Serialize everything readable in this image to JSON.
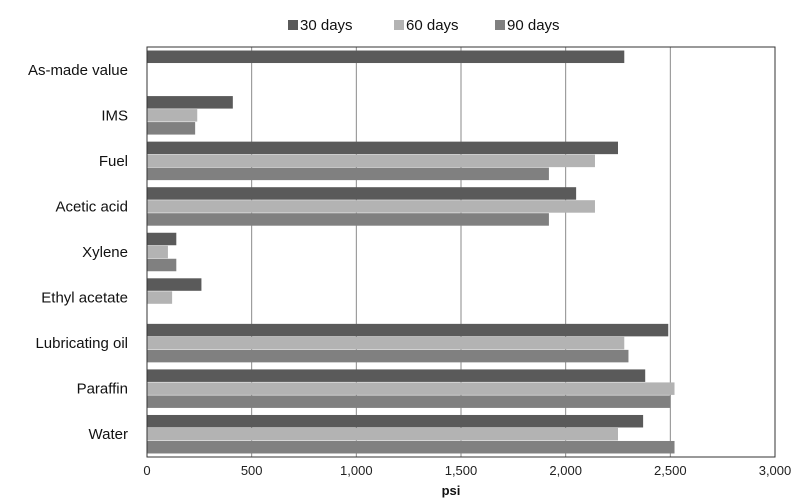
{
  "chart_data": {
    "type": "bar",
    "orientation": "horizontal",
    "xlabel": "psi",
    "xlim": [
      0,
      3000
    ],
    "x_ticks": [
      "0",
      "500",
      "1,000",
      "1,500",
      "2,000",
      "2,500",
      "3,000"
    ],
    "grid": "vertical",
    "legend_position": "top",
    "categories": [
      "As-made value",
      "IMS",
      "Fuel",
      "Acetic acid",
      "Xylene",
      "Ethyl acetate",
      "Lubricating oil",
      "Paraffin",
      "Water"
    ],
    "series": [
      {
        "name": "30 days",
        "color": "#5a5a5a",
        "values": [
          2280,
          410,
          2250,
          2050,
          140,
          260,
          2490,
          2380,
          2370
        ]
      },
      {
        "name": "60 days",
        "color": "#b3b3b3",
        "values": [
          null,
          240,
          2140,
          2140,
          100,
          120,
          2280,
          2520,
          2250
        ]
      },
      {
        "name": "90 days",
        "color": "#808080",
        "values": [
          null,
          230,
          1920,
          1920,
          140,
          null,
          2300,
          2500,
          2520
        ]
      }
    ]
  }
}
